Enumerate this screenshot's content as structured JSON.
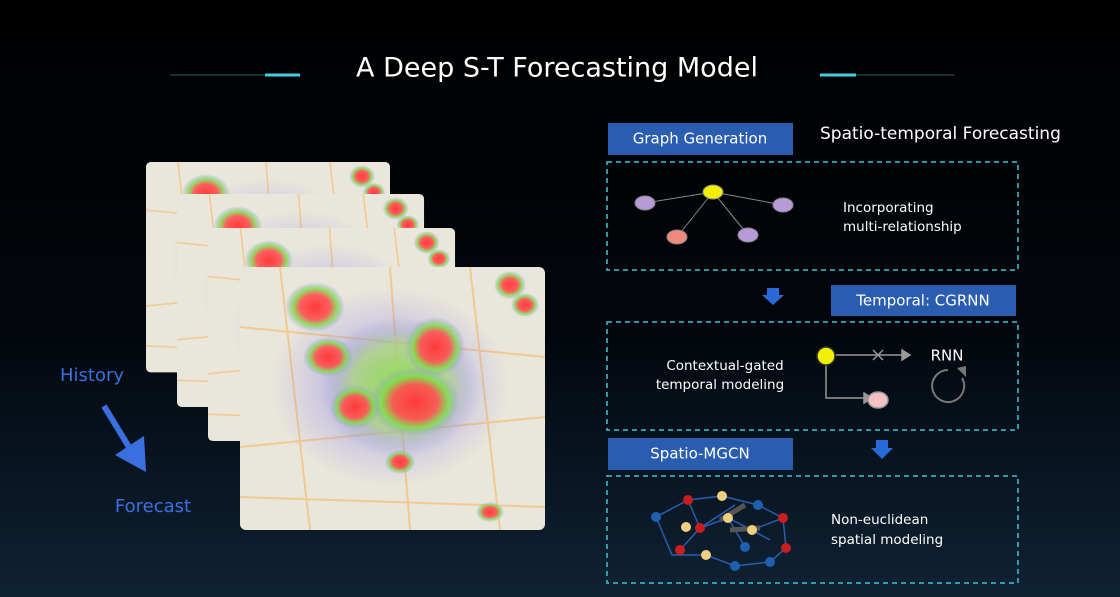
{
  "title": "A Deep S-T Forecasting Model",
  "left": {
    "history": "History",
    "forecast": "Forecast"
  },
  "right": {
    "subtitle": "Spatio-temporal Forecasting",
    "graph_generation": {
      "label": "Graph Generation",
      "text": [
        "Incorporating",
        "multi-relationship"
      ]
    },
    "temporal": {
      "label": "Temporal: CGRNN",
      "text": [
        "Contextual-gated",
        "temporal modeling"
      ],
      "rnn": "RNN"
    },
    "spatio": {
      "label": "Spatio-MGCN",
      "text": [
        "Non-euclidean",
        "spatial modeling"
      ]
    }
  }
}
